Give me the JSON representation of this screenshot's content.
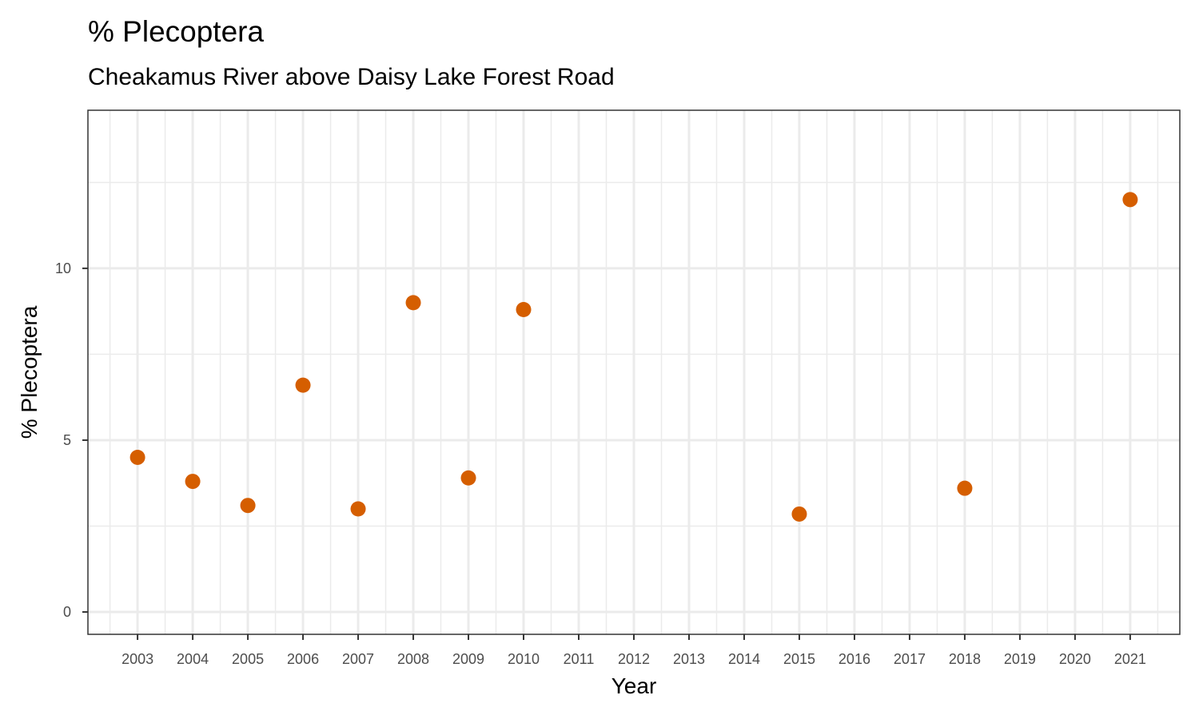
{
  "chart_data": {
    "type": "scatter",
    "title": "% Plecoptera",
    "subtitle": "Cheakamus River above Daisy Lake Forest Road",
    "xlabel": "Year",
    "ylabel": "% Plecoptera",
    "x_ticks": [
      "2003",
      "2004",
      "2005",
      "2006",
      "2007",
      "2008",
      "2009",
      "2010",
      "2011",
      "2012",
      "2013",
      "2014",
      "2015",
      "2016",
      "2017",
      "2018",
      "2019",
      "2020",
      "2021"
    ],
    "y_ticks": [
      0,
      5,
      10
    ],
    "xlim": [
      2002.1,
      2021.9
    ],
    "ylim": [
      -0.65,
      14.6
    ],
    "grid": true,
    "point_color": "#d55e00",
    "points": [
      {
        "x": 2003,
        "y": 4.5
      },
      {
        "x": 2004,
        "y": 3.8
      },
      {
        "x": 2005,
        "y": 3.1
      },
      {
        "x": 2006,
        "y": 6.6
      },
      {
        "x": 2007,
        "y": 3.0
      },
      {
        "x": 2008,
        "y": 9.0
      },
      {
        "x": 2009,
        "y": 3.9
      },
      {
        "x": 2010,
        "y": 8.8
      },
      {
        "x": 2015,
        "y": 2.85
      },
      {
        "x": 2018,
        "y": 3.6
      },
      {
        "x": 2021,
        "y": 12.0
      }
    ]
  }
}
